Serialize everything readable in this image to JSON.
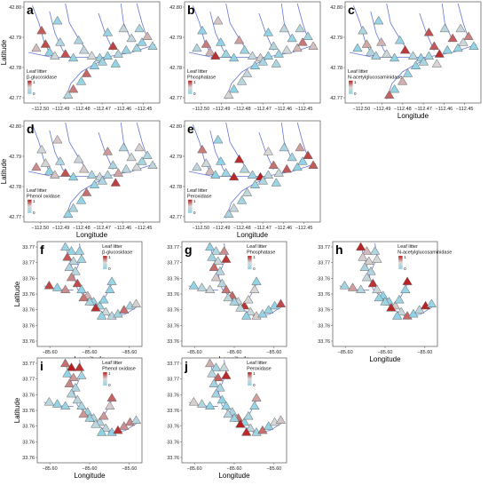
{
  "top": {
    "lat_ticks": [
      "42.80",
      "42.79",
      "42.78",
      "42.77"
    ],
    "lon_ticks": [
      "−112.50",
      "−112.49",
      "−112.48",
      "−112.47",
      "−112.46",
      "−112.45"
    ],
    "lat_label": "Latitude",
    "lon_label": "Longitude",
    "panels": [
      {
        "letter": "a",
        "legend_title": "Leaf litter",
        "enzyme": "β-glucosidase"
      },
      {
        "letter": "b",
        "legend_title": "Leaf litter",
        "enzyme": "Phosphatase"
      },
      {
        "letter": "c",
        "legend_title": "Leaf litter",
        "enzyme": "N-acetylglucosaminidase"
      },
      {
        "letter": "d",
        "legend_title": "Leaf litter",
        "enzyme": "Phenol oxidase"
      },
      {
        "letter": "e",
        "legend_title": "Leaf litter",
        "enzyme": "Peroxidase"
      }
    ]
  },
  "bottom": {
    "lat_ticks": [
      "33.77",
      "33.77",
      "33.76",
      "33.76",
      "33.76",
      "33.76",
      "33.76"
    ],
    "lon_ticks": [
      "−85.60",
      "−85.60",
      "−85.60"
    ],
    "lat_label": "Latitude",
    "lon_label": "Longitude",
    "panels": [
      {
        "letter": "f",
        "legend_title": "Leaf litter",
        "enzyme": "β-glucosidase"
      },
      {
        "letter": "g",
        "legend_title": "Leaf litter",
        "enzyme": "Phosphatase"
      },
      {
        "letter": "h",
        "legend_title": "Leaf litter",
        "enzyme": "N-acetylglucosaminidase"
      },
      {
        "letter": "i",
        "legend_title": "Leaf litter",
        "enzyme": "Phenol oxidase"
      },
      {
        "letter": "j",
        "legend_title": "Leaf litter",
        "enzyme": "Peroxidase"
      }
    ]
  },
  "legend_scale": {
    "max": "1",
    "min": "0"
  },
  "colors": {
    "low": "#8fd3e6",
    "mid": "#d8d8d8",
    "high": "#b81c1c",
    "stream": "#4a5fd0",
    "outline": "#666666"
  }
}
